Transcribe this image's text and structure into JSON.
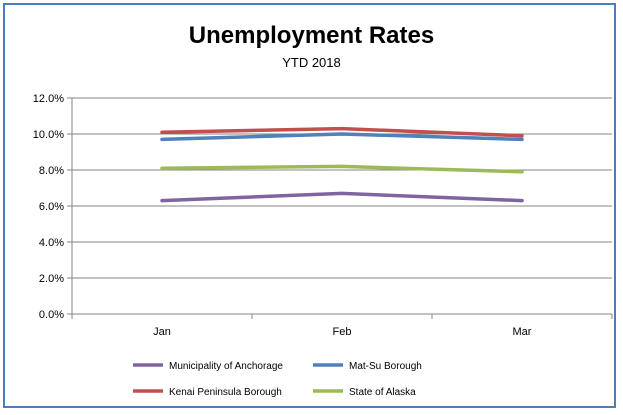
{
  "chart_data": {
    "type": "line",
    "title": "Unemployment Rates",
    "subtitle": "YTD 2018",
    "xlabel": "",
    "ylabel": "",
    "categories": [
      "Jan",
      "Feb",
      "Mar"
    ],
    "ylim": [
      0,
      12
    ],
    "yticks": [
      "0.0%",
      "2.0%",
      "4.0%",
      "6.0%",
      "8.0%",
      "10.0%",
      "12.0%"
    ],
    "grid": true,
    "legend_position": "bottom",
    "series": [
      {
        "name": "Municipality of Anchorage",
        "color": "#8064a2",
        "values": [
          6.3,
          6.7,
          6.3
        ]
      },
      {
        "name": "Mat-Su Borough",
        "color": "#4f81bd",
        "values": [
          9.7,
          10.0,
          9.7
        ]
      },
      {
        "name": "Kenai Peninsula Borough",
        "color": "#c0504d",
        "values": [
          10.1,
          10.3,
          9.9
        ]
      },
      {
        "name": "State of Alaska",
        "color": "#9bbb59",
        "values": [
          8.1,
          8.2,
          7.9
        ]
      }
    ]
  }
}
